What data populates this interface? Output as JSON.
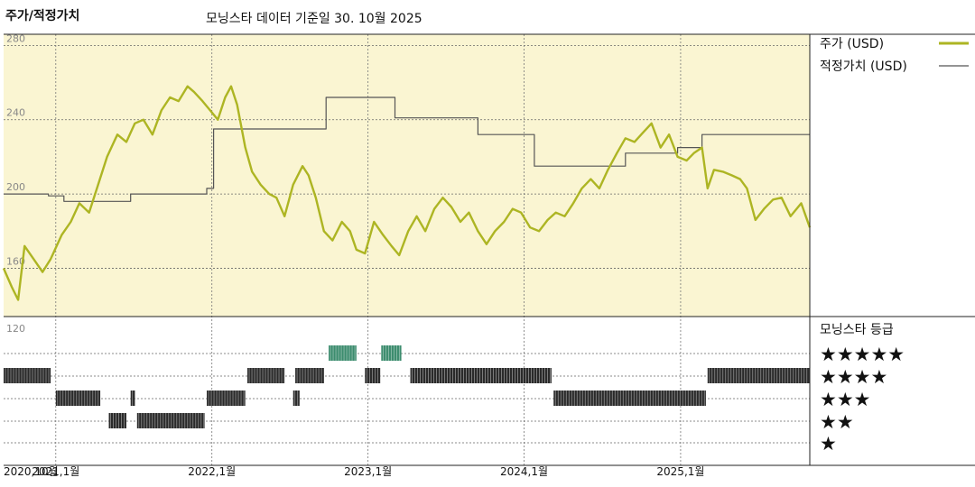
{
  "header": {
    "title": "주가/적정가치",
    "subtitle": "모닝스타 데이터 기준일 30. 10월 2025"
  },
  "colors": {
    "price": "#adb523",
    "fair_value": "#555555",
    "plot_bg": "#faf5d2",
    "rating_green": "#3c8c6e",
    "rating_dark": "#2a2a2a"
  },
  "chart_data": [
    {
      "type": "line",
      "title": "주가/적정가치",
      "y_ticks": [
        "280",
        "240",
        "200",
        "160"
      ],
      "y_tick_values": [
        280,
        240,
        200,
        160
      ],
      "ylim": [
        134,
        286
      ],
      "xlim": [
        "2020-09-01",
        "2025-10-30"
      ],
      "x_ticks": [
        {
          "date": "2020-09-01",
          "label": "2020,10월"
        },
        {
          "date": "2021-01-01",
          "label": "2021,1월"
        },
        {
          "date": "2022-01-01",
          "label": "2022,1월"
        },
        {
          "date": "2023-01-01",
          "label": "2023,1월"
        },
        {
          "date": "2024-01-01",
          "label": "2024,1월"
        },
        {
          "date": "2025-01-01",
          "label": "2025,1월"
        }
      ],
      "grid": true,
      "legend": "right",
      "series": [
        {
          "name": "주가 (USD)",
          "style": "price",
          "points": [
            [
              "2020-09-01",
              160
            ],
            [
              "2020-09-20",
              150
            ],
            [
              "2020-10-05",
              143
            ],
            [
              "2020-10-20",
              172
            ],
            [
              "2020-11-10",
              165
            ],
            [
              "2020-12-01",
              158
            ],
            [
              "2020-12-20",
              165
            ],
            [
              "2021-01-15",
              178
            ],
            [
              "2021-02-05",
              185
            ],
            [
              "2021-02-25",
              195
            ],
            [
              "2021-03-20",
              190
            ],
            [
              "2021-04-10",
              205
            ],
            [
              "2021-05-01",
              220
            ],
            [
              "2021-05-25",
              232
            ],
            [
              "2021-06-15",
              228
            ],
            [
              "2021-07-05",
              238
            ],
            [
              "2021-07-25",
              240
            ],
            [
              "2021-08-15",
              232
            ],
            [
              "2021-09-05",
              245
            ],
            [
              "2021-09-25",
              252
            ],
            [
              "2021-10-15",
              250
            ],
            [
              "2021-11-05",
              258
            ],
            [
              "2021-11-20",
              255
            ],
            [
              "2021-12-10",
              250
            ],
            [
              "2021-12-28",
              245
            ],
            [
              "2022-01-15",
              240
            ],
            [
              "2022-02-01",
              252
            ],
            [
              "2022-02-15",
              258
            ],
            [
              "2022-03-01",
              248
            ],
            [
              "2022-03-20",
              225
            ],
            [
              "2022-04-05",
              212
            ],
            [
              "2022-04-25",
              205
            ],
            [
              "2022-05-15",
              200
            ],
            [
              "2022-06-01",
              198
            ],
            [
              "2022-06-20",
              188
            ],
            [
              "2022-07-10",
              205
            ],
            [
              "2022-08-01",
              215
            ],
            [
              "2022-08-15",
              210
            ],
            [
              "2022-09-01",
              198
            ],
            [
              "2022-09-20",
              180
            ],
            [
              "2022-10-10",
              175
            ],
            [
              "2022-11-01",
              185
            ],
            [
              "2022-11-20",
              180
            ],
            [
              "2022-12-05",
              170
            ],
            [
              "2022-12-25",
              168
            ],
            [
              "2023-01-15",
              185
            ],
            [
              "2023-02-05",
              178
            ],
            [
              "2023-02-25",
              172
            ],
            [
              "2023-03-15",
              167
            ],
            [
              "2023-04-05",
              180
            ],
            [
              "2023-04-25",
              188
            ],
            [
              "2023-05-15",
              180
            ],
            [
              "2023-06-05",
              192
            ],
            [
              "2023-06-25",
              198
            ],
            [
              "2023-07-15",
              193
            ],
            [
              "2023-08-05",
              185
            ],
            [
              "2023-08-25",
              190
            ],
            [
              "2023-09-15",
              180
            ],
            [
              "2023-10-05",
              173
            ],
            [
              "2023-10-25",
              180
            ],
            [
              "2023-11-15",
              185
            ],
            [
              "2023-12-05",
              192
            ],
            [
              "2023-12-25",
              190
            ],
            [
              "2024-01-15",
              182
            ],
            [
              "2024-02-05",
              180
            ],
            [
              "2024-02-25",
              186
            ],
            [
              "2024-03-15",
              190
            ],
            [
              "2024-04-05",
              188
            ],
            [
              "2024-04-25",
              195
            ],
            [
              "2024-05-15",
              203
            ],
            [
              "2024-06-05",
              208
            ],
            [
              "2024-06-25",
              203
            ],
            [
              "2024-07-15",
              213
            ],
            [
              "2024-08-05",
              222
            ],
            [
              "2024-08-25",
              230
            ],
            [
              "2024-09-15",
              228
            ],
            [
              "2024-10-05",
              233
            ],
            [
              "2024-10-25",
              238
            ],
            [
              "2024-11-15",
              225
            ],
            [
              "2024-12-05",
              232
            ],
            [
              "2024-12-25",
              220
            ],
            [
              "2025-01-15",
              218
            ],
            [
              "2025-02-01",
              222
            ],
            [
              "2025-02-20",
              225
            ],
            [
              "2025-03-05",
              203
            ],
            [
              "2025-03-20",
              213
            ],
            [
              "2025-04-10",
              212
            ],
            [
              "2025-05-01",
              210
            ],
            [
              "2025-05-20",
              208
            ],
            [
              "2025-06-05",
              203
            ],
            [
              "2025-06-25",
              186
            ],
            [
              "2025-07-15",
              192
            ],
            [
              "2025-08-05",
              197
            ],
            [
              "2025-08-25",
              198
            ],
            [
              "2025-09-15",
              188
            ],
            [
              "2025-10-10",
              195
            ],
            [
              "2025-10-30",
              182
            ]
          ]
        },
        {
          "name": "적정가치 (USD)",
          "style": "fair",
          "points": [
            [
              "2020-09-01",
              200
            ],
            [
              "2020-12-15",
              200
            ],
            [
              "2020-12-15",
              199
            ],
            [
              "2021-01-20",
              199
            ],
            [
              "2021-01-20",
              196
            ],
            [
              "2021-06-25",
              196
            ],
            [
              "2021-06-25",
              200
            ],
            [
              "2021-12-20",
              200
            ],
            [
              "2021-12-20",
              203
            ],
            [
              "2022-01-05",
              203
            ],
            [
              "2022-01-05",
              235
            ],
            [
              "2022-09-25",
              235
            ],
            [
              "2022-09-25",
              252
            ],
            [
              "2023-03-05",
              252
            ],
            [
              "2023-03-05",
              241
            ],
            [
              "2023-09-15",
              241
            ],
            [
              "2023-09-15",
              232
            ],
            [
              "2024-01-25",
              232
            ],
            [
              "2024-01-25",
              215
            ],
            [
              "2024-08-25",
              215
            ],
            [
              "2024-08-25",
              222
            ],
            [
              "2024-12-25",
              222
            ],
            [
              "2024-12-25",
              225
            ],
            [
              "2025-02-20",
              225
            ],
            [
              "2025-02-20",
              232
            ],
            [
              "2025-10-30",
              232
            ]
          ]
        }
      ]
    },
    {
      "type": "timeline",
      "title": "모닝스타 등급",
      "y_tick": "120",
      "rows": [
        "★★★★★",
        "★★★★",
        "★★★",
        "★★",
        "★"
      ],
      "segments": [
        {
          "row": 0,
          "start": "2022-10-01",
          "end": "2022-12-05"
        },
        {
          "row": 0,
          "start": "2023-02-01",
          "end": "2023-03-20"
        },
        {
          "row": 1,
          "start": "2020-09-01",
          "end": "2020-12-20"
        },
        {
          "row": 1,
          "start": "2022-03-25",
          "end": "2022-06-20"
        },
        {
          "row": 1,
          "start": "2022-07-15",
          "end": "2022-09-20"
        },
        {
          "row": 1,
          "start": "2022-12-25",
          "end": "2023-01-30"
        },
        {
          "row": 1,
          "start": "2023-04-10",
          "end": "2024-03-05"
        },
        {
          "row": 1,
          "start": "2025-03-05",
          "end": "2025-10-30"
        },
        {
          "row": 2,
          "start": "2021-01-01",
          "end": "2021-04-15"
        },
        {
          "row": 2,
          "start": "2021-06-25",
          "end": "2021-07-05"
        },
        {
          "row": 2,
          "start": "2021-12-20",
          "end": "2022-03-20"
        },
        {
          "row": 2,
          "start": "2022-07-10",
          "end": "2022-07-25"
        },
        {
          "row": 2,
          "start": "2024-03-10",
          "end": "2025-03-01"
        },
        {
          "row": 3,
          "start": "2021-05-05",
          "end": "2021-06-15"
        },
        {
          "row": 3,
          "start": "2021-07-10",
          "end": "2021-12-15"
        }
      ]
    }
  ]
}
